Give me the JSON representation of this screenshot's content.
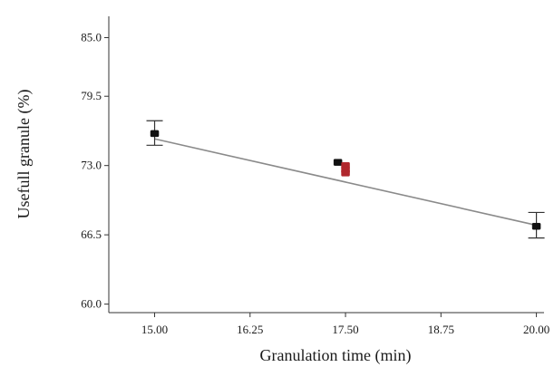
{
  "chart_data": {
    "type": "scatter",
    "title": "",
    "xlabel": "Granulation time (min)",
    "ylabel": "Usefull granule (%)",
    "xlim": [
      14.4,
      20.1
    ],
    "ylim": [
      59.2,
      87.0
    ],
    "x_ticks": [
      "15.00",
      "16.25",
      "17.50",
      "18.75",
      "20.00"
    ],
    "y_ticks": [
      "85.0",
      "79.5",
      "73.0",
      "66.5",
      "60.0"
    ],
    "x_tick_values": [
      15.0,
      16.25,
      17.5,
      18.75,
      20.0
    ],
    "y_tick_values": [
      85.0,
      79.5,
      73.0,
      66.5,
      60.0
    ],
    "fit_line": {
      "x": [
        15.0,
        20.0
      ],
      "y": [
        75.5,
        67.4
      ]
    },
    "error_bars": [
      {
        "x": 15.0,
        "y_low": 74.9,
        "y_high": 77.2
      },
      {
        "x": 20.0,
        "y_low": 66.2,
        "y_high": 68.6
      }
    ],
    "series": [
      {
        "color": "#111111",
        "points": [
          {
            "x": 15.0,
            "y": 76.0
          },
          {
            "x": 17.4,
            "y": 73.3
          },
          {
            "x": 20.0,
            "y": 67.3
          }
        ]
      },
      {
        "color": "#b0272d",
        "points": [
          {
            "x": 17.5,
            "y": 73.0
          },
          {
            "x": 17.5,
            "y": 72.6
          },
          {
            "x": 17.5,
            "y": 72.3
          }
        ]
      }
    ],
    "grid": false,
    "legend": "none"
  }
}
